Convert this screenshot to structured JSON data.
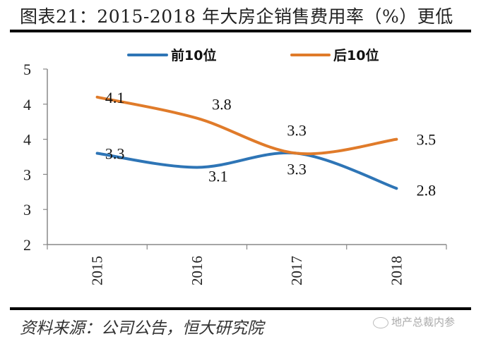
{
  "header": {
    "title": "图表21：2015-2018 年大房企销售费用率（%）更低"
  },
  "footer": {
    "source": "资料来源：公司公告，恒大研究院",
    "watermark": "地产总裁内参"
  },
  "colors": {
    "series1": "#2E75B6",
    "series2": "#E07B2A",
    "axis": "#888888"
  },
  "chart_data": {
    "type": "line",
    "title": "2015-2018 年大房企销售费用率（%）更低",
    "xlabel": "",
    "ylabel": "",
    "categories": [
      "2015",
      "2016",
      "2017",
      "2018"
    ],
    "ylim": [
      2.0,
      4.5
    ],
    "yticks": [
      2.0,
      2.5,
      3.0,
      3.5,
      4.0,
      4.5
    ],
    "ytick_labels": [
      "2",
      "3",
      "3",
      "4",
      "4",
      "5"
    ],
    "legend_position": "top",
    "grid": false,
    "smooth": true,
    "series": [
      {
        "name": "前10位",
        "values": [
          3.3,
          3.1,
          3.3,
          2.8
        ],
        "labels": [
          "3.3",
          "3.1",
          "3.3",
          "2.8"
        ]
      },
      {
        "name": "后10位",
        "values": [
          4.1,
          3.8,
          3.3,
          3.5
        ],
        "labels": [
          "4.1",
          "3.8",
          "3.3",
          "3.5"
        ]
      }
    ]
  }
}
